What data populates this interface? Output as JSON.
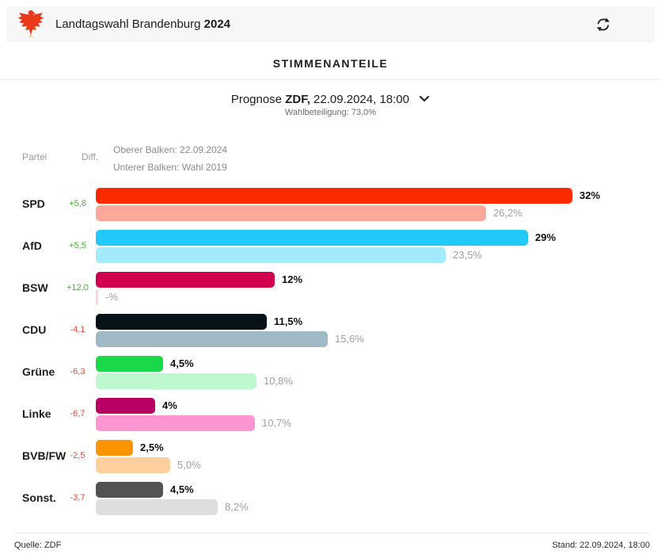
{
  "header": {
    "title_regular": "Landtagswahl Brandenburg ",
    "title_bold": "2024",
    "logo": "brandenburg-eagle",
    "refresh_icon": "refresh"
  },
  "section_title": "STIMMENANTEILE",
  "prognose": {
    "prefix": "Prognose ",
    "source_bold": "ZDF,",
    "datetime": " 22.09.2024, 18:00",
    "turnout": "Wahlbeteiligung: 73,0%"
  },
  "table_headers": {
    "party": "Partei",
    "diff": "Diff."
  },
  "legend": {
    "upper": "Oberer Balken: 22.09.2024",
    "lower": "Unterer Balken: Wahl 2019"
  },
  "colors": {
    "diff_positive": "#44b234",
    "diff_negative": "#ea4b3c",
    "header_bg": "#f7f7f7",
    "eagle_red": "#e8391d"
  },
  "chart_data": {
    "type": "bar",
    "orientation": "horizontal",
    "title": "Stimmenanteile",
    "series_labels": [
      "22.09.2024 (Prognose)",
      "Wahl 2019"
    ],
    "max_percent": 32,
    "xlim": [
      0,
      32
    ],
    "rows": [
      {
        "party": "SPD",
        "diff": "+5,8",
        "current": 32,
        "current_label": "32%",
        "previous": 26.2,
        "previous_label": "26,2%",
        "color": "#fe2b01",
        "color_light": "#fca99c"
      },
      {
        "party": "AfD",
        "diff": "+5,5",
        "current": 29,
        "current_label": "29%",
        "previous": 23.5,
        "previous_label": "23,5%",
        "color": "#22c9fb",
        "color_light": "#a3eafc"
      },
      {
        "party": "BSW",
        "diff": "+12,0",
        "current": 12,
        "current_label": "12%",
        "previous": null,
        "previous_label": "-%",
        "color": "#d0004f",
        "color_light": "#f9d3de"
      },
      {
        "party": "CDU",
        "diff": "-4,1",
        "current": 11.5,
        "current_label": "11,5%",
        "previous": 15.6,
        "previous_label": "15,6%",
        "color": "#071118",
        "color_light": "#9fb9c5"
      },
      {
        "party": "Grüne",
        "diff": "-6,3",
        "current": 4.5,
        "current_label": "4,5%",
        "previous": 10.8,
        "previous_label": "10,8%",
        "color": "#19d948",
        "color_light": "#bdf8d1"
      },
      {
        "party": "Linke",
        "diff": "-6,7",
        "current": 4,
        "current_label": "4%",
        "previous": 10.7,
        "previous_label": "10,7%",
        "color": "#b80064",
        "color_light": "#fe95d3"
      },
      {
        "party": "BVB/FW",
        "diff": "-2,5",
        "current": 2.5,
        "current_label": "2,5%",
        "previous": 5.0,
        "previous_label": "5,0%",
        "color": "#fd9501",
        "color_light": "#fdd09e"
      },
      {
        "party": "Sonst.",
        "diff": "-3,7",
        "current": 4.5,
        "current_label": "4,5%",
        "previous": 8.2,
        "previous_label": "8,2%",
        "color": "#545354",
        "color_light": "#dedede"
      }
    ]
  },
  "footer": {
    "source": "Quelle: ZDF",
    "stand": "Stand: 22.09.2024, 18:00"
  }
}
